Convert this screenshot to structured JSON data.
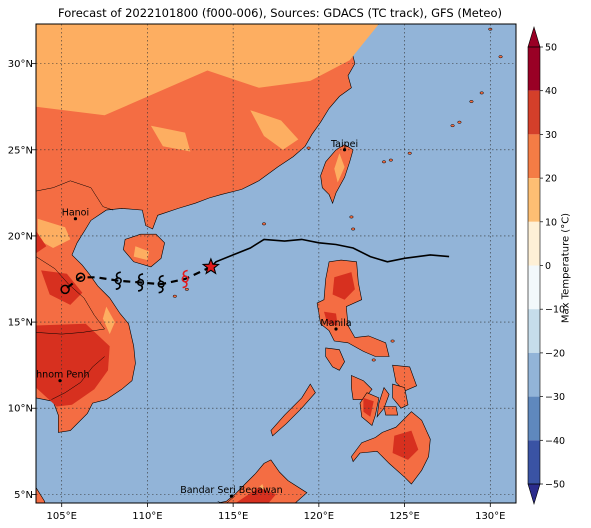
{
  "title": "Forecast of 2022101800 (f000-006), Sources: GDACS (TC track), GFS (Meteo)",
  "map": {
    "lon_range": [
      103.5,
      131.5
    ],
    "lat_range": [
      4.5,
      32.3
    ],
    "lon_ticks": [
      "105°E",
      "110°E",
      "115°E",
      "120°E",
      "125°E",
      "130°E"
    ],
    "lat_ticks": [
      "5°N",
      "10°N",
      "15°N",
      "20°N",
      "25°N",
      "30°N"
    ],
    "grid": true,
    "ocean_color": "#92b4d8"
  },
  "cities": [
    {
      "name": "Taipei",
      "lon": 121.5,
      "lat": 25.0
    },
    {
      "name": "Hanoi",
      "lon": 105.8,
      "lat": 21.0
    },
    {
      "name": "Manila",
      "lon": 121.0,
      "lat": 14.6
    },
    {
      "name": "Phnom Penh",
      "lon": 104.9,
      "lat": 11.6
    },
    {
      "name": "Bandar Seri Begawan",
      "lon": 114.9,
      "lat": 4.9
    }
  ],
  "track": {
    "observed": [
      [
        127.6,
        18.8
      ],
      [
        126.5,
        18.9
      ],
      [
        125.0,
        18.7
      ],
      [
        124.0,
        18.5
      ],
      [
        123.0,
        18.8
      ],
      [
        122.0,
        19.3
      ],
      [
        121.0,
        19.5
      ],
      [
        120.0,
        19.6
      ],
      [
        119.0,
        19.8
      ],
      [
        118.0,
        19.7
      ],
      [
        116.8,
        19.8
      ],
      [
        116.0,
        19.3
      ],
      [
        115.0,
        18.9
      ],
      [
        114.0,
        18.5
      ],
      [
        113.7,
        18.2
      ]
    ],
    "current_position": [
      113.7,
      18.2
    ],
    "forecast": [
      [
        113.7,
        18.2
      ],
      [
        112.2,
        17.5
      ],
      [
        110.8,
        17.2
      ],
      [
        109.6,
        17.3
      ],
      [
        108.3,
        17.4
      ],
      [
        107.0,
        17.6
      ],
      [
        106.1,
        17.6
      ],
      [
        105.2,
        16.9
      ]
    ],
    "forecast_symbols": [
      {
        "lon": 112.2,
        "lat": 17.5,
        "kind": "storm",
        "color": "#e31a1c"
      },
      {
        "lon": 110.8,
        "lat": 17.2,
        "kind": "storm",
        "color": "#000000"
      },
      {
        "lon": 109.6,
        "lat": 17.3,
        "kind": "storm",
        "color": "#000000"
      },
      {
        "lon": 108.3,
        "lat": 17.4,
        "kind": "storm",
        "color": "#000000"
      },
      {
        "lon": 106.1,
        "lat": 17.6,
        "kind": "low",
        "color": "#000000"
      },
      {
        "lon": 105.2,
        "lat": 16.9,
        "kind": "low",
        "color": "#000000"
      }
    ]
  },
  "colorbar": {
    "label": "Max Temperature (°C)",
    "min": -50,
    "max": 50,
    "step": 10,
    "ticks": [
      "50",
      "40",
      "30",
      "20",
      "10",
      "0",
      "−10",
      "−20",
      "−30",
      "−40",
      "−50"
    ],
    "colors": [
      "#2b2c8c",
      "#3a53a4",
      "#5f88bd",
      "#92b4d8",
      "#c6ddeb",
      "#f2f8fb",
      "#fef0d6",
      "#fdbe73",
      "#f47c45",
      "#d43f2a",
      "#990025"
    ],
    "extend": "both"
  },
  "land_colors": {
    "hot": "#d7301f",
    "warm": "#f46d43",
    "mild": "#fdae61"
  }
}
